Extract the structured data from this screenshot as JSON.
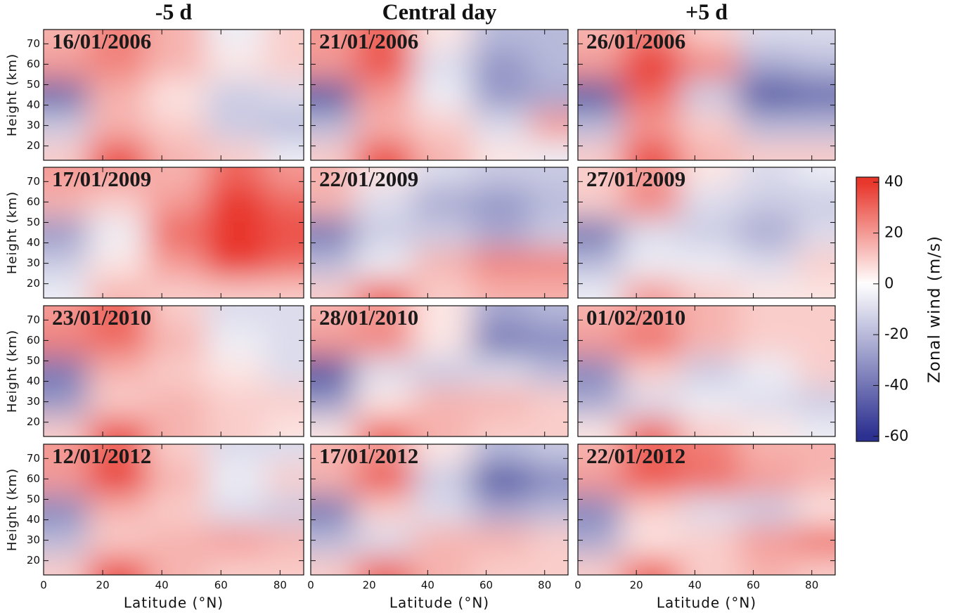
{
  "column_titles": [
    "-5 d",
    "Central day",
    "+5 d"
  ],
  "colors": {
    "negative": "#2b2f8f",
    "zero": "#ffffff",
    "positive": "#e8352a"
  },
  "colorbar": {
    "label": "Zonal wind (m/s)",
    "lim": [
      -62,
      42
    ],
    "ticks": [
      -60,
      -40,
      -20,
      0,
      20,
      40
    ]
  },
  "chart_data": [
    {
      "type": "heatmap",
      "title": "16/01/2006",
      "x": [
        5,
        25,
        45,
        65,
        85
      ],
      "y": [
        15,
        30,
        45,
        60,
        75
      ],
      "z": [
        [
          10,
          35,
          15,
          10,
          -5
        ],
        [
          -15,
          15,
          10,
          -15,
          -20
        ],
        [
          -45,
          15,
          5,
          -15,
          -10
        ],
        [
          20,
          25,
          15,
          5,
          10
        ],
        [
          15,
          25,
          15,
          -5,
          10
        ]
      ],
      "xlim": [
        0,
        88
      ],
      "ylim": [
        13,
        77
      ],
      "xticks": [
        0,
        20,
        40,
        60,
        80
      ],
      "yticks": [
        20,
        30,
        40,
        50,
        60,
        70
      ],
      "ylabel": "Height (km)"
    },
    {
      "type": "heatmap",
      "title": "21/01/2006",
      "x": [
        5,
        25,
        45,
        65,
        85
      ],
      "y": [
        15,
        30,
        45,
        60,
        75
      ],
      "z": [
        [
          10,
          35,
          15,
          5,
          -5
        ],
        [
          -20,
          15,
          10,
          -10,
          20
        ],
        [
          -50,
          20,
          -5,
          -30,
          -25
        ],
        [
          20,
          35,
          -10,
          -30,
          -20
        ],
        [
          20,
          30,
          5,
          -20,
          -20
        ]
      ],
      "xlim": [
        0,
        88
      ],
      "ylim": [
        13,
        77
      ],
      "xticks": [
        0,
        20,
        40,
        60,
        80
      ],
      "yticks": [
        20,
        30,
        40,
        50,
        60,
        70
      ]
    },
    {
      "type": "heatmap",
      "title": "26/01/2006",
      "x": [
        5,
        25,
        45,
        65,
        85
      ],
      "y": [
        15,
        30,
        45,
        60,
        75
      ],
      "z": [
        [
          10,
          35,
          15,
          10,
          10
        ],
        [
          -20,
          20,
          10,
          -20,
          -20
        ],
        [
          -50,
          30,
          -15,
          -50,
          -45
        ],
        [
          20,
          40,
          25,
          -25,
          -20
        ],
        [
          15,
          25,
          10,
          -10,
          -10
        ]
      ],
      "xlim": [
        0,
        88
      ],
      "ylim": [
        13,
        77
      ],
      "xticks": [
        0,
        20,
        40,
        60,
        80
      ],
      "yticks": [
        20,
        30,
        40,
        50,
        60,
        70
      ]
    },
    {
      "type": "heatmap",
      "title": "17/01/2009",
      "x": [
        5,
        25,
        45,
        65,
        85
      ],
      "y": [
        15,
        30,
        45,
        60,
        75
      ],
      "z": [
        [
          -5,
          15,
          10,
          10,
          10
        ],
        [
          -15,
          5,
          20,
          40,
          30
        ],
        [
          -30,
          -5,
          30,
          45,
          35
        ],
        [
          15,
          10,
          20,
          45,
          30
        ],
        [
          20,
          20,
          15,
          30,
          20
        ]
      ],
      "xlim": [
        0,
        88
      ],
      "ylim": [
        13,
        77
      ],
      "xticks": [
        0,
        20,
        40,
        60,
        80
      ],
      "yticks": [
        20,
        30,
        40,
        50,
        60,
        70
      ],
      "ylabel": "Height (km)"
    },
    {
      "type": "heatmap",
      "title": "22/01/2009",
      "x": [
        5,
        25,
        45,
        65,
        85
      ],
      "y": [
        15,
        30,
        45,
        60,
        75
      ],
      "z": [
        [
          10,
          30,
          10,
          15,
          15
        ],
        [
          -20,
          -5,
          15,
          25,
          25
        ],
        [
          -40,
          -15,
          -15,
          -25,
          -15
        ],
        [
          15,
          -10,
          -25,
          -30,
          -20
        ],
        [
          15,
          5,
          -10,
          -15,
          -15
        ]
      ],
      "xlim": [
        0,
        88
      ],
      "ylim": [
        13,
        77
      ],
      "xticks": [
        0,
        20,
        40,
        60,
        80
      ],
      "yticks": [
        20,
        30,
        40,
        50,
        60,
        70
      ]
    },
    {
      "type": "heatmap",
      "title": "27/01/2009",
      "x": [
        5,
        25,
        45,
        65,
        85
      ],
      "y": [
        15,
        30,
        45,
        60,
        75
      ],
      "z": [
        [
          -5,
          20,
          10,
          5,
          5
        ],
        [
          -20,
          -5,
          -5,
          -10,
          10
        ],
        [
          -40,
          -10,
          -15,
          -25,
          -10
        ],
        [
          10,
          25,
          -10,
          -15,
          -15
        ],
        [
          10,
          20,
          5,
          -10,
          -5
        ]
      ],
      "xlim": [
        0,
        88
      ],
      "ylim": [
        13,
        77
      ],
      "xticks": [
        0,
        20,
        40,
        60,
        80
      ],
      "yticks": [
        20,
        30,
        40,
        50,
        60,
        70
      ]
    },
    {
      "type": "heatmap",
      "title": "23/01/2010",
      "x": [
        5,
        25,
        45,
        65,
        85
      ],
      "y": [
        15,
        30,
        45,
        60,
        75
      ],
      "z": [
        [
          10,
          35,
          15,
          10,
          5
        ],
        [
          -30,
          10,
          15,
          10,
          10
        ],
        [
          -40,
          15,
          10,
          5,
          -10
        ],
        [
          25,
          30,
          15,
          -5,
          -10
        ],
        [
          20,
          30,
          10,
          -10,
          -10
        ]
      ],
      "xlim": [
        0,
        88
      ],
      "ylim": [
        13,
        77
      ],
      "xticks": [
        0,
        20,
        40,
        60,
        80
      ],
      "yticks": [
        20,
        30,
        40,
        50,
        60,
        70
      ],
      "ylabel": "Height (km)"
    },
    {
      "type": "heatmap",
      "title": "28/01/2010",
      "x": [
        5,
        25,
        45,
        65,
        85
      ],
      "y": [
        15,
        30,
        45,
        60,
        75
      ],
      "z": [
        [
          5,
          30,
          15,
          10,
          10
        ],
        [
          -30,
          5,
          15,
          15,
          10
        ],
        [
          -50,
          -10,
          -15,
          -10,
          -20
        ],
        [
          20,
          25,
          5,
          -40,
          -35
        ],
        [
          15,
          20,
          5,
          -25,
          -20
        ]
      ],
      "xlim": [
        0,
        88
      ],
      "ylim": [
        13,
        77
      ],
      "xticks": [
        0,
        20,
        40,
        60,
        80
      ],
      "yticks": [
        20,
        30,
        40,
        50,
        60,
        70
      ]
    },
    {
      "type": "heatmap",
      "title": "01/02/2010",
      "x": [
        5,
        25,
        45,
        65,
        85
      ],
      "y": [
        15,
        30,
        45,
        60,
        75
      ],
      "z": [
        [
          5,
          30,
          10,
          5,
          -5
        ],
        [
          -25,
          -10,
          -5,
          -10,
          -15
        ],
        [
          -35,
          10,
          -15,
          -5,
          10
        ],
        [
          20,
          30,
          15,
          10,
          10
        ],
        [
          15,
          20,
          15,
          10,
          10
        ]
      ],
      "xlim": [
        0,
        88
      ],
      "ylim": [
        13,
        77
      ],
      "xticks": [
        0,
        20,
        40,
        60,
        80
      ],
      "yticks": [
        20,
        30,
        40,
        50,
        60,
        70
      ]
    },
    {
      "type": "heatmap",
      "title": "12/01/2012",
      "x": [
        5,
        25,
        45,
        65,
        85
      ],
      "y": [
        15,
        30,
        45,
        60,
        75
      ],
      "z": [
        [
          10,
          35,
          15,
          10,
          10
        ],
        [
          -20,
          10,
          15,
          20,
          15
        ],
        [
          -35,
          15,
          10,
          -10,
          -15
        ],
        [
          20,
          40,
          15,
          -5,
          10
        ],
        [
          20,
          30,
          10,
          -10,
          -10
        ]
      ],
      "xlim": [
        0,
        88
      ],
      "ylim": [
        13,
        77
      ],
      "xticks": [
        0,
        20,
        40,
        60,
        80
      ],
      "yticks": [
        20,
        30,
        40,
        50,
        60,
        70
      ],
      "ylabel": "Height (km)",
      "xlabel": "Latitude (°N)"
    },
    {
      "type": "heatmap",
      "title": "17/01/2012",
      "x": [
        5,
        25,
        45,
        65,
        85
      ],
      "y": [
        15,
        30,
        45,
        60,
        75
      ],
      "z": [
        [
          10,
          30,
          15,
          10,
          10
        ],
        [
          -20,
          -10,
          15,
          15,
          10
        ],
        [
          -40,
          10,
          -10,
          -25,
          -20
        ],
        [
          15,
          35,
          -15,
          -50,
          -35
        ],
        [
          15,
          20,
          5,
          -20,
          -15
        ]
      ],
      "xlim": [
        0,
        88
      ],
      "ylim": [
        13,
        77
      ],
      "xticks": [
        0,
        20,
        40,
        60,
        80
      ],
      "yticks": [
        20,
        30,
        40,
        50,
        60,
        70
      ],
      "xlabel": "Latitude (°N)"
    },
    {
      "type": "heatmap",
      "title": "22/01/2012",
      "x": [
        5,
        25,
        45,
        65,
        85
      ],
      "y": [
        15,
        30,
        45,
        60,
        75
      ],
      "z": [
        [
          10,
          30,
          10,
          15,
          10
        ],
        [
          -25,
          5,
          10,
          20,
          30
        ],
        [
          -35,
          10,
          -10,
          -15,
          5
        ],
        [
          20,
          35,
          30,
          20,
          15
        ],
        [
          15,
          30,
          25,
          15,
          15
        ]
      ],
      "xlim": [
        0,
        88
      ],
      "ylim": [
        13,
        77
      ],
      "xticks": [
        0,
        20,
        40,
        60,
        80
      ],
      "yticks": [
        20,
        30,
        40,
        50,
        60,
        70
      ],
      "xlabel": "Latitude (°N)"
    }
  ]
}
